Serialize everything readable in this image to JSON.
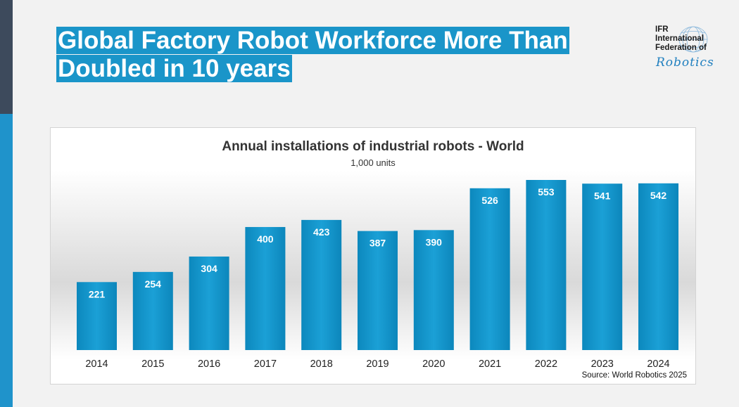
{
  "slide": {
    "title_line1": "Global Factory Robot Workforce More Than",
    "title_line2": "Doubled in 10 years"
  },
  "logo": {
    "line1": "IFR",
    "line2": "International",
    "line3": "Federation of",
    "script": "Robotics"
  },
  "colors": {
    "bar": "#0f95c9",
    "bar_dark": "#0b7fb1",
    "title_bg": "#1a95c9"
  },
  "chart_data": {
    "type": "bar",
    "title": "Annual installations of industrial robots - World",
    "subtitle": "1,000 units",
    "categories": [
      "2014",
      "2015",
      "2016",
      "2017",
      "2018",
      "2019",
      "2020",
      "2021",
      "2022",
      "2023",
      "2024"
    ],
    "values": [
      221,
      254,
      304,
      400,
      423,
      387,
      390,
      526,
      553,
      541,
      542
    ],
    "xlabel": "",
    "ylabel": "",
    "ylim": [
      0,
      553
    ],
    "grid": false,
    "source": "Source: World Robotics 2025"
  }
}
